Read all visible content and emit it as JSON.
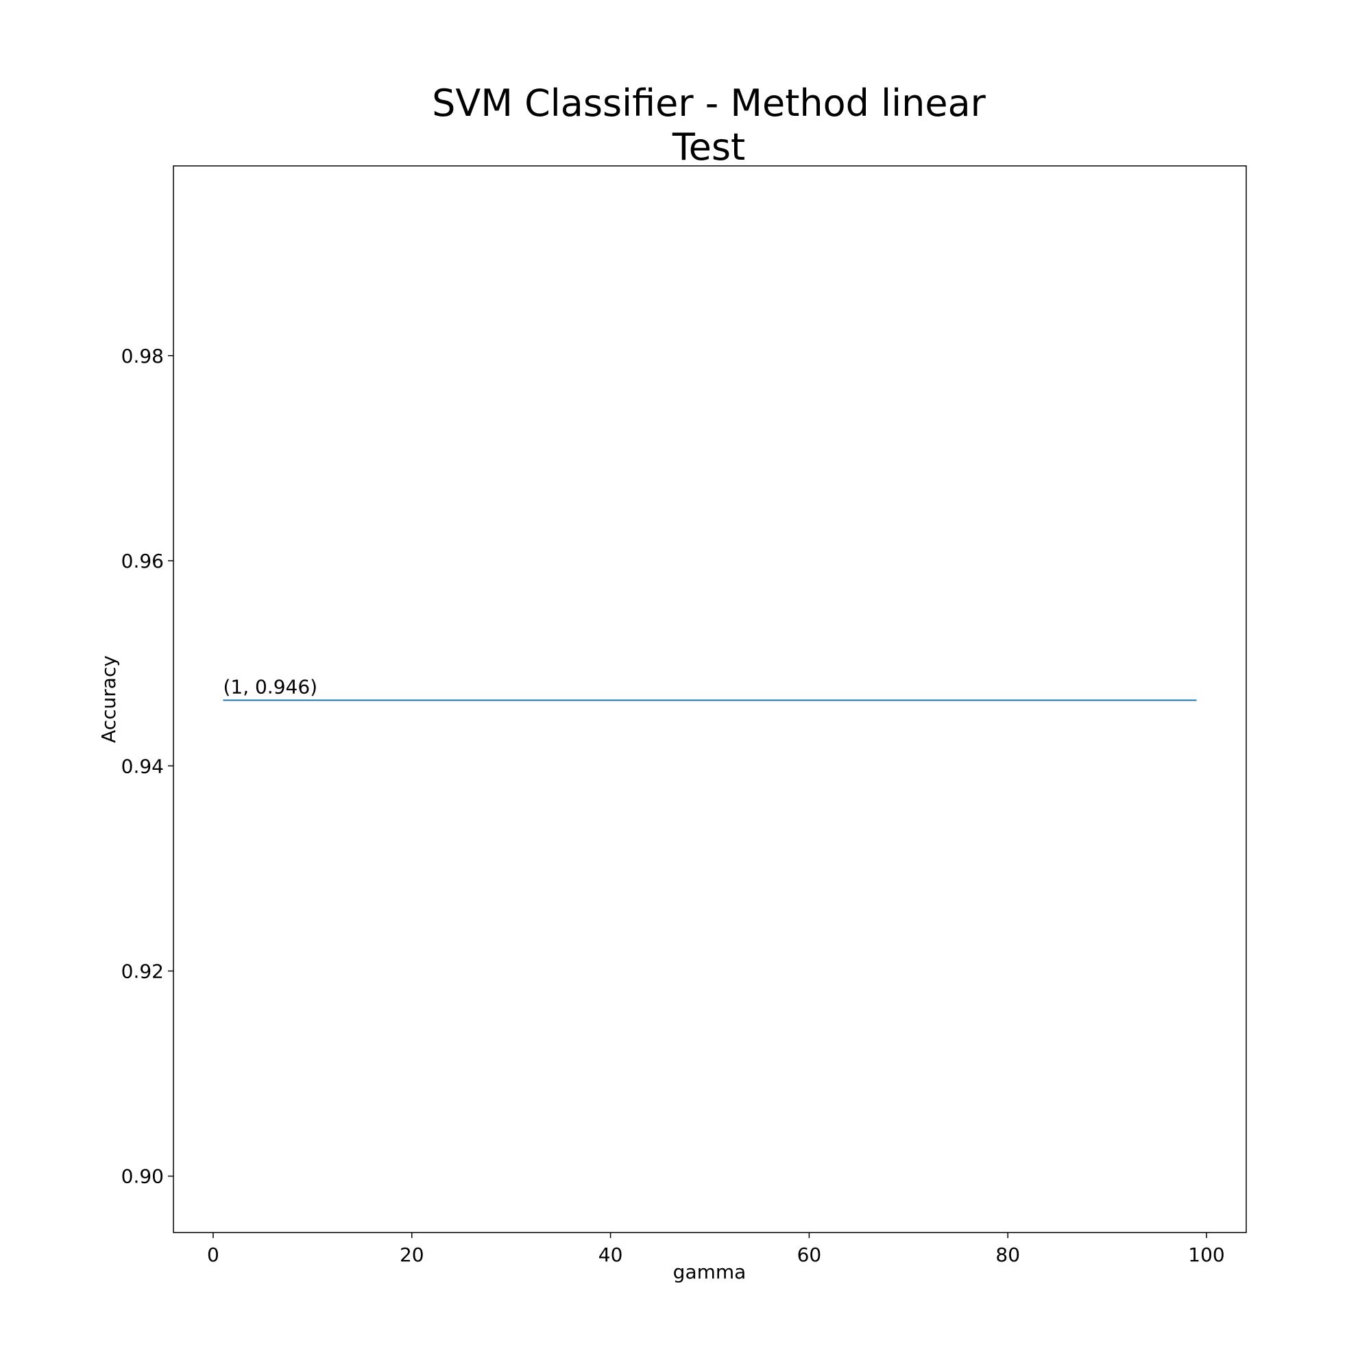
{
  "chart_data": {
    "type": "line",
    "title_lines": [
      "SVM Classifier - Method linear",
      "Test"
    ],
    "xlabel": "gamma",
    "ylabel": "Accuracy",
    "xlim": [
      -4,
      104
    ],
    "ylim": [
      0.8945,
      0.9985
    ],
    "xticks": [
      0,
      20,
      40,
      60,
      80,
      100
    ],
    "xtick_labels": [
      "0",
      "20",
      "40",
      "60",
      "80",
      "100"
    ],
    "yticks": [
      0.9,
      0.92,
      0.94,
      0.96,
      0.98
    ],
    "ytick_labels": [
      "0.90",
      "0.92",
      "0.94",
      "0.96",
      "0.98"
    ],
    "series": [
      {
        "x": [
          1,
          99
        ],
        "y": [
          0.9464,
          0.9464
        ],
        "color": "#1f77b4"
      }
    ],
    "annotations": [
      {
        "text": "(1, 0.946)",
        "x": 1,
        "y": 0.9464
      }
    ],
    "grid": false
  }
}
